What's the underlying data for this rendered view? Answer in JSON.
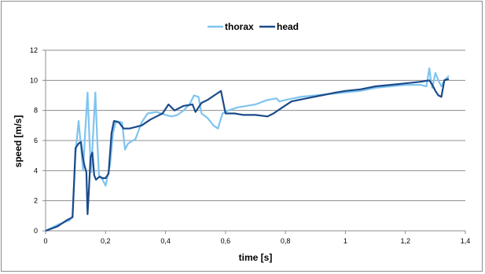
{
  "chart_data": {
    "type": "line",
    "title": "",
    "xlabel": "time [s]",
    "ylabel": "speed [m/s]",
    "xlim": [
      0,
      1.4
    ],
    "ylim": [
      0,
      12
    ],
    "x_ticks": [
      "0",
      "0,2",
      "0,4",
      "0,6",
      "0,8",
      "1",
      "1,2",
      "1,4"
    ],
    "x_tick_values": [
      0,
      0.2,
      0.4,
      0.6,
      0.8,
      1.0,
      1.2,
      1.4
    ],
    "y_ticks": [
      "0",
      "2",
      "4",
      "6",
      "8",
      "10",
      "12"
    ],
    "y_tick_values": [
      0,
      2,
      4,
      6,
      8,
      10,
      12
    ],
    "grid": "horizontal",
    "legend_position": "top",
    "series": [
      {
        "name": "thorax",
        "color": "#7fc4ef",
        "points": [
          [
            0.0,
            0.0
          ],
          [
            0.04,
            0.4
          ],
          [
            0.08,
            0.7
          ],
          [
            0.09,
            1.0
          ],
          [
            0.1,
            5.2
          ],
          [
            0.11,
            7.3
          ],
          [
            0.118,
            5.6
          ],
          [
            0.125,
            4.0
          ],
          [
            0.132,
            6.5
          ],
          [
            0.14,
            9.2
          ],
          [
            0.146,
            6.2
          ],
          [
            0.152,
            3.9
          ],
          [
            0.16,
            7.0
          ],
          [
            0.166,
            9.2
          ],
          [
            0.172,
            6.2
          ],
          [
            0.178,
            3.7
          ],
          [
            0.19,
            3.4
          ],
          [
            0.2,
            3.0
          ],
          [
            0.215,
            4.4
          ],
          [
            0.225,
            6.5
          ],
          [
            0.235,
            7.3
          ],
          [
            0.255,
            7.2
          ],
          [
            0.265,
            5.4
          ],
          [
            0.275,
            5.8
          ],
          [
            0.3,
            6.1
          ],
          [
            0.32,
            7.2
          ],
          [
            0.34,
            7.8
          ],
          [
            0.37,
            7.9
          ],
          [
            0.4,
            7.7
          ],
          [
            0.42,
            7.6
          ],
          [
            0.44,
            7.7
          ],
          [
            0.46,
            8.0
          ],
          [
            0.48,
            8.4
          ],
          [
            0.495,
            9.0
          ],
          [
            0.51,
            8.9
          ],
          [
            0.52,
            7.8
          ],
          [
            0.54,
            7.5
          ],
          [
            0.56,
            7.0
          ],
          [
            0.575,
            6.8
          ],
          [
            0.59,
            7.8
          ],
          [
            0.61,
            8.0
          ],
          [
            0.64,
            8.2
          ],
          [
            0.67,
            8.3
          ],
          [
            0.7,
            8.4
          ],
          [
            0.74,
            8.7
          ],
          [
            0.77,
            8.8
          ],
          [
            0.78,
            8.6
          ],
          [
            0.8,
            8.7
          ],
          [
            0.85,
            8.9
          ],
          [
            0.9,
            9.0
          ],
          [
            0.95,
            9.1
          ],
          [
            1.0,
            9.2
          ],
          [
            1.05,
            9.3
          ],
          [
            1.1,
            9.5
          ],
          [
            1.15,
            9.6
          ],
          [
            1.2,
            9.7
          ],
          [
            1.25,
            9.7
          ],
          [
            1.27,
            9.6
          ],
          [
            1.28,
            10.8
          ],
          [
            1.285,
            10.0
          ],
          [
            1.29,
            9.5
          ],
          [
            1.3,
            10.5
          ],
          [
            1.31,
            10.0
          ],
          [
            1.32,
            9.6
          ],
          [
            1.33,
            10.0
          ],
          [
            1.34,
            10.2
          ],
          [
            1.345,
            10.3
          ]
        ]
      },
      {
        "name": "head",
        "color": "#1a4a8a",
        "points": [
          [
            0.0,
            0.0
          ],
          [
            0.04,
            0.3
          ],
          [
            0.07,
            0.7
          ],
          [
            0.09,
            0.9
          ],
          [
            0.1,
            5.5
          ],
          [
            0.11,
            5.8
          ],
          [
            0.118,
            5.9
          ],
          [
            0.124,
            4.9
          ],
          [
            0.13,
            4.3
          ],
          [
            0.136,
            3.9
          ],
          [
            0.14,
            1.1
          ],
          [
            0.144,
            2.5
          ],
          [
            0.15,
            4.9
          ],
          [
            0.156,
            5.2
          ],
          [
            0.162,
            3.7
          ],
          [
            0.168,
            3.4
          ],
          [
            0.18,
            3.6
          ],
          [
            0.19,
            3.5
          ],
          [
            0.2,
            3.5
          ],
          [
            0.21,
            3.8
          ],
          [
            0.22,
            6.5
          ],
          [
            0.228,
            7.3
          ],
          [
            0.245,
            7.2
          ],
          [
            0.26,
            6.8
          ],
          [
            0.28,
            6.8
          ],
          [
            0.32,
            7.0
          ],
          [
            0.35,
            7.4
          ],
          [
            0.37,
            7.6
          ],
          [
            0.39,
            7.8
          ],
          [
            0.41,
            8.4
          ],
          [
            0.43,
            8.0
          ],
          [
            0.46,
            8.3
          ],
          [
            0.49,
            8.4
          ],
          [
            0.5,
            7.9
          ],
          [
            0.52,
            8.5
          ],
          [
            0.54,
            8.7
          ],
          [
            0.57,
            9.1
          ],
          [
            0.585,
            9.3
          ],
          [
            0.6,
            7.8
          ],
          [
            0.63,
            7.8
          ],
          [
            0.66,
            7.7
          ],
          [
            0.7,
            7.7
          ],
          [
            0.74,
            7.6
          ],
          [
            0.76,
            7.8
          ],
          [
            0.79,
            8.2
          ],
          [
            0.82,
            8.6
          ],
          [
            0.87,
            8.8
          ],
          [
            0.92,
            9.0
          ],
          [
            0.97,
            9.2
          ],
          [
            1.0,
            9.3
          ],
          [
            1.05,
            9.4
          ],
          [
            1.1,
            9.6
          ],
          [
            1.15,
            9.7
          ],
          [
            1.2,
            9.8
          ],
          [
            1.25,
            9.9
          ],
          [
            1.28,
            10.0
          ],
          [
            1.29,
            9.7
          ],
          [
            1.3,
            9.3
          ],
          [
            1.31,
            9.0
          ],
          [
            1.32,
            8.9
          ],
          [
            1.33,
            10.0
          ],
          [
            1.345,
            10.1
          ]
        ]
      }
    ]
  }
}
